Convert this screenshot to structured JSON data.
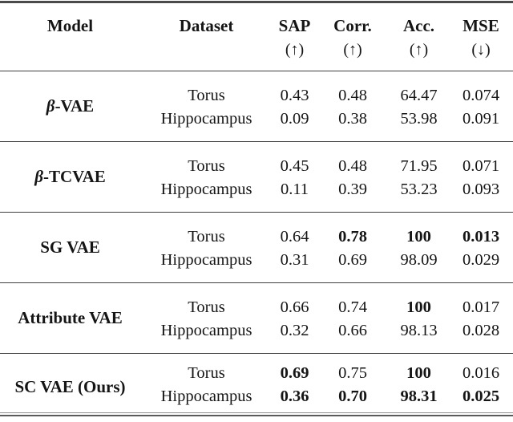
{
  "table": {
    "header": [
      {
        "label": "Model",
        "arrow": ""
      },
      {
        "label": "Dataset",
        "arrow": ""
      },
      {
        "label": "SAP",
        "arrow": "(↑)"
      },
      {
        "label": "Corr.",
        "arrow": "(↑)"
      },
      {
        "label": "Acc.",
        "arrow": "(↑)"
      },
      {
        "label": "MSE",
        "arrow": "(↓)"
      }
    ],
    "groups": [
      {
        "model": {
          "italic": "β",
          "rest": "-VAE"
        },
        "rows": [
          {
            "dataset": "Torus",
            "cells": [
              {
                "text": "0.43",
                "bold": false
              },
              {
                "text": "0.48",
                "bold": false
              },
              {
                "text": "64.47",
                "bold": false
              },
              {
                "text": "0.074",
                "bold": false
              }
            ]
          },
          {
            "dataset": "Hippocampus",
            "cells": [
              {
                "text": "0.09",
                "bold": false
              },
              {
                "text": "0.38",
                "bold": false
              },
              {
                "text": "53.98",
                "bold": false
              },
              {
                "text": "0.091",
                "bold": false
              }
            ]
          }
        ]
      },
      {
        "model": {
          "italic": "β",
          "rest": "-TCVAE"
        },
        "rows": [
          {
            "dataset": "Torus",
            "cells": [
              {
                "text": "0.45",
                "bold": false
              },
              {
                "text": "0.48",
                "bold": false
              },
              {
                "text": "71.95",
                "bold": false
              },
              {
                "text": "0.071",
                "bold": false
              }
            ]
          },
          {
            "dataset": "Hippocampus",
            "cells": [
              {
                "text": "0.11",
                "bold": false
              },
              {
                "text": "0.39",
                "bold": false
              },
              {
                "text": "53.23",
                "bold": false
              },
              {
                "text": "0.093",
                "bold": false
              }
            ]
          }
        ]
      },
      {
        "model": {
          "italic": "",
          "rest": "SG VAE"
        },
        "rows": [
          {
            "dataset": "Torus",
            "cells": [
              {
                "text": "0.64",
                "bold": false
              },
              {
                "text": "0.78",
                "bold": true
              },
              {
                "text": "100",
                "bold": true
              },
              {
                "text": "0.013",
                "bold": true
              }
            ]
          },
          {
            "dataset": "Hippocampus",
            "cells": [
              {
                "text": "0.31",
                "bold": false
              },
              {
                "text": "0.69",
                "bold": false
              },
              {
                "text": "98.09",
                "bold": false
              },
              {
                "text": "0.029",
                "bold": false
              }
            ]
          }
        ]
      },
      {
        "model": {
          "italic": "",
          "rest": "Attribute VAE"
        },
        "rows": [
          {
            "dataset": "Torus",
            "cells": [
              {
                "text": "0.66",
                "bold": false
              },
              {
                "text": "0.74",
                "bold": false
              },
              {
                "text": "100",
                "bold": true
              },
              {
                "text": "0.017",
                "bold": false
              }
            ]
          },
          {
            "dataset": "Hippocampus",
            "cells": [
              {
                "text": "0.32",
                "bold": false
              },
              {
                "text": "0.66",
                "bold": false
              },
              {
                "text": "98.13",
                "bold": false
              },
              {
                "text": "0.028",
                "bold": false
              }
            ]
          }
        ]
      },
      {
        "model": {
          "italic": "",
          "rest": "SC VAE (Ours)"
        },
        "rows": [
          {
            "dataset": "Torus",
            "cells": [
              {
                "text": "0.69",
                "bold": true
              },
              {
                "text": "0.75",
                "bold": false
              },
              {
                "text": "100",
                "bold": true
              },
              {
                "text": "0.016",
                "bold": false
              }
            ]
          },
          {
            "dataset": "Hippocampus",
            "cells": [
              {
                "text": "0.36",
                "bold": true
              },
              {
                "text": "0.70",
                "bold": true
              },
              {
                "text": "98.31",
                "bold": true
              },
              {
                "text": "0.025",
                "bold": true
              }
            ]
          }
        ]
      }
    ]
  }
}
